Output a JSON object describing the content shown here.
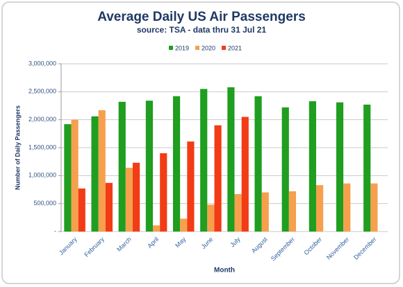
{
  "chart_data": {
    "type": "bar",
    "title": "Average Daily US Air Passengers",
    "subtitle": "source: TSA - data thru 31 Jul 21",
    "x_label": "Month",
    "y_label": "Number of Daily Passengers",
    "categories": [
      "January",
      "February",
      "March",
      "April",
      "May",
      "June",
      "July",
      "August",
      "September",
      "October",
      "November",
      "December"
    ],
    "series": [
      {
        "name": "2019",
        "color": "#1f9e1f",
        "values": [
          1920000,
          2060000,
          2320000,
          2340000,
          2420000,
          2550000,
          2580000,
          2420000,
          2220000,
          2330000,
          2310000,
          2270000
        ]
      },
      {
        "name": "2020",
        "color": "#f6a04e",
        "values": [
          2000000,
          2170000,
          1140000,
          110000,
          230000,
          480000,
          670000,
          700000,
          720000,
          830000,
          860000,
          860000
        ]
      },
      {
        "name": "2021",
        "color": "#f23c16",
        "values": [
          770000,
          870000,
          1230000,
          1400000,
          1610000,
          1900000,
          2050000,
          null,
          null,
          null,
          null,
          null
        ]
      }
    ],
    "ylim": [
      0,
      3000000
    ],
    "yticks": [
      {
        "value": 0,
        "label": "-"
      },
      {
        "value": 500000,
        "label": "500,000"
      },
      {
        "value": 1000000,
        "label": "1,000,000"
      },
      {
        "value": 1500000,
        "label": "1,500,000"
      },
      {
        "value": 2000000,
        "label": "2,000,000"
      },
      {
        "value": 2500000,
        "label": "2,500,000"
      },
      {
        "value": 3000000,
        "label": "3,000,000"
      }
    ],
    "grid": true,
    "legend": "top"
  }
}
